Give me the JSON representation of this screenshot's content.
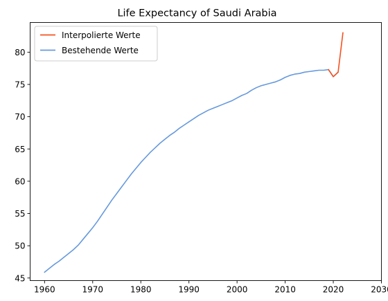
{
  "chart_data": {
    "type": "line",
    "title": "Life Expectancy of Saudi Arabia",
    "xlabel": "",
    "ylabel": "",
    "xlim": [
      1957,
      2030
    ],
    "ylim": [
      44.6,
      84.6
    ],
    "x_ticks": [
      1960,
      1970,
      1980,
      1990,
      2000,
      2010,
      2020,
      2030
    ],
    "y_ticks": [
      45,
      50,
      55,
      60,
      65,
      70,
      75,
      80
    ],
    "grid": false,
    "legend": {
      "position": "top-left"
    },
    "series": [
      {
        "name": "Interpolierte Werte",
        "color": "#f4511e",
        "x": [
          2019,
          2020,
          2021,
          2022
        ],
        "y": [
          77.3,
          76.2,
          76.9,
          83.0
        ]
      },
      {
        "name": "Bestehende Werte",
        "color": "#6699dd",
        "x": [
          1960,
          1961,
          1962,
          1963,
          1964,
          1965,
          1966,
          1967,
          1968,
          1969,
          1970,
          1971,
          1972,
          1973,
          1974,
          1975,
          1976,
          1977,
          1978,
          1979,
          1980,
          1981,
          1982,
          1983,
          1984,
          1985,
          1986,
          1987,
          1988,
          1989,
          1990,
          1991,
          1992,
          1993,
          1994,
          1995,
          1996,
          1997,
          1998,
          1999,
          2000,
          2001,
          2002,
          2003,
          2004,
          2005,
          2006,
          2007,
          2008,
          2009,
          2010,
          2011,
          2012,
          2013,
          2014,
          2015,
          2016,
          2017,
          2018,
          2019,
          2020,
          2021
        ],
        "y": [
          45.9,
          46.5,
          47.1,
          47.6,
          48.2,
          48.8,
          49.4,
          50.1,
          51.0,
          51.9,
          52.8,
          53.8,
          54.9,
          56.0,
          57.1,
          58.1,
          59.1,
          60.1,
          61.1,
          62.0,
          62.9,
          63.7,
          64.5,
          65.2,
          65.9,
          66.5,
          67.1,
          67.6,
          68.2,
          68.7,
          69.2,
          69.7,
          70.2,
          70.6,
          71.0,
          71.3,
          71.6,
          71.9,
          72.2,
          72.5,
          72.9,
          73.3,
          73.6,
          74.1,
          74.5,
          74.8,
          75.0,
          75.2,
          75.4,
          75.7,
          76.1,
          76.4,
          76.6,
          76.7,
          76.9,
          77.0,
          77.1,
          77.2,
          77.2,
          77.3,
          76.2,
          76.9
        ]
      }
    ]
  }
}
